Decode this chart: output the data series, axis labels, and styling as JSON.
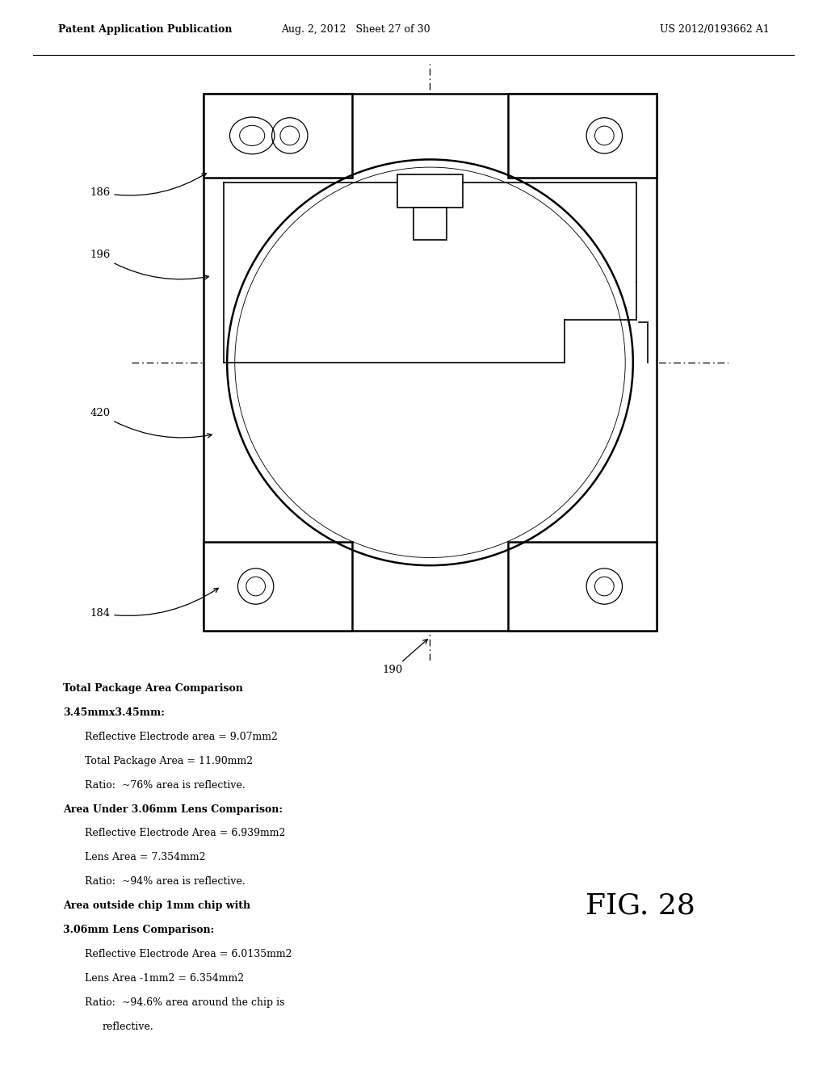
{
  "header_left": "Patent Application Publication",
  "header_mid": "Aug. 2, 2012   Sheet 27 of 30",
  "header_right": "US 2012/0193662 A1",
  "fig_label": "FIG. 28",
  "text_block": [
    {
      "text": "Total Package Area Comparison",
      "bold": true,
      "indent": 0
    },
    {
      "text": "3.45mmx3.45mm:",
      "bold": true,
      "indent": 0
    },
    {
      "text": "Reflective Electrode area = 9.07mm2",
      "bold": false,
      "indent": 1
    },
    {
      "text": "Total Package Area = 11.90mm2",
      "bold": false,
      "indent": 1
    },
    {
      "text": "Ratio:  ~76% area is reflective.",
      "bold": false,
      "indent": 1
    },
    {
      "text": "Area Under 3.06mm Lens Comparison:",
      "bold": true,
      "indent": 0
    },
    {
      "text": "Reflective Electrode Area = 6.939mm2",
      "bold": false,
      "indent": 1
    },
    {
      "text": "Lens Area = 7.354mm2",
      "bold": false,
      "indent": 1
    },
    {
      "text": "Ratio:  ~94% area is reflective.",
      "bold": false,
      "indent": 1
    },
    {
      "text": "Area outside chip 1mm chip with",
      "bold": true,
      "indent": 0
    },
    {
      "text": "3.06mm Lens Comparison:",
      "bold": true,
      "indent": 0
    },
    {
      "text": "Reflective Electrode Area = 6.0135mm2",
      "bold": false,
      "indent": 1
    },
    {
      "text": "Lens Area -1mm2 = 6.354mm2",
      "bold": false,
      "indent": 1
    },
    {
      "text": "Ratio:  ~94.6% area around the chip is",
      "bold": false,
      "indent": 1
    },
    {
      "text": "reflective.",
      "bold": false,
      "indent": 2
    }
  ]
}
